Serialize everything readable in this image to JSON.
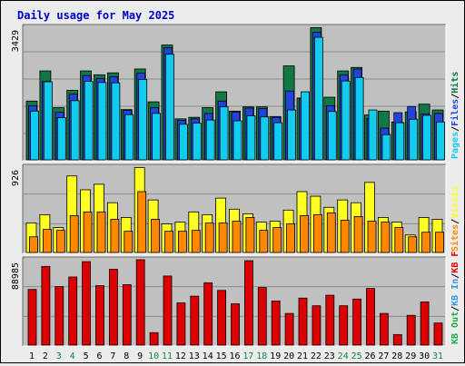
{
  "title": "Daily usage for May 2025",
  "colors": {
    "title": "#0000cc",
    "panel_bg": "#c0c0c0",
    "grid": "#8c8c8c",
    "hits": "#117744",
    "files": "#2244dd",
    "pages": "#11ccee",
    "visits": "#ffff22",
    "sites": "#ff8800",
    "kbf": "#dd0000",
    "kbin": "#3399dd",
    "kbout": "#22aa44",
    "day_weekday": "#000000",
    "day_weekend": "#118844"
  },
  "chart_data": [
    {
      "type": "bar",
      "panel": "hits-files-pages",
      "categories": [
        "1",
        "2",
        "3",
        "4",
        "5",
        "6",
        "7",
        "8",
        "9",
        "10",
        "11",
        "12",
        "13",
        "14",
        "15",
        "16",
        "17",
        "18",
        "19",
        "20",
        "21",
        "22",
        "23",
        "24",
        "25",
        "26",
        "27",
        "28",
        "29",
        "30",
        "31"
      ],
      "weekend_days": [
        "3",
        "4",
        "10",
        "11",
        "17",
        "18",
        "24",
        "25",
        "31"
      ],
      "max_label": "3429",
      "ylim": [
        0,
        3429
      ],
      "legend": [
        {
          "label": "Hits",
          "color_key": "hits"
        },
        {
          "label": "Files",
          "color_key": "files"
        },
        {
          "label": "Pages",
          "color_key": "pages"
        }
      ],
      "separator": "/",
      "series": [
        {
          "name": "Hits",
          "color_key": "hits",
          "values": [
            1520,
            2300,
            1350,
            1800,
            2300,
            2200,
            2250,
            1300,
            2350,
            1500,
            2970,
            1060,
            1100,
            1350,
            1760,
            1260,
            1370,
            1370,
            1120,
            2430,
            1600,
            3420,
            1620,
            2300,
            2390,
            1160,
            1260,
            980,
            1240,
            1440,
            1290
          ]
        },
        {
          "name": "Files",
          "color_key": "files",
          "values": [
            1400,
            2030,
            1230,
            1700,
            2180,
            2100,
            2150,
            1280,
            2240,
            1350,
            2900,
            1020,
            1060,
            1200,
            1520,
            1230,
            1340,
            1330,
            1100,
            1780,
            1580,
            3300,
            1400,
            2200,
            2350,
            1070,
            820,
            1220,
            1380,
            1190,
            1200
          ]
        },
        {
          "name": "Pages",
          "color_key": "pages",
          "values": [
            1260,
            2020,
            1090,
            1530,
            2030,
            2000,
            1990,
            1170,
            2080,
            1200,
            2730,
            920,
            950,
            1030,
            1370,
            1010,
            1140,
            1110,
            960,
            1290,
            1760,
            3170,
            1250,
            2040,
            2130,
            1290,
            650,
            960,
            1050,
            1150,
            980
          ]
        }
      ]
    },
    {
      "type": "bar",
      "panel": "visits-sites",
      "categories": [
        "1",
        "2",
        "3",
        "4",
        "5",
        "6",
        "7",
        "8",
        "9",
        "10",
        "11",
        "12",
        "13",
        "14",
        "15",
        "16",
        "17",
        "18",
        "19",
        "20",
        "21",
        "22",
        "23",
        "24",
        "25",
        "26",
        "27",
        "28",
        "29",
        "30",
        "31"
      ],
      "max_label": "926",
      "ylim": [
        0,
        926
      ],
      "legend": [
        {
          "label": "Visits",
          "color_key": "visits"
        },
        {
          "label": "Sites",
          "color_key": "sites"
        }
      ],
      "separator": "/",
      "series": [
        {
          "name": "Visits",
          "color_key": "visits",
          "values": [
            320,
            410,
            270,
            830,
            680,
            740,
            540,
            380,
            920,
            570,
            310,
            330,
            440,
            410,
            590,
            470,
            420,
            330,
            340,
            460,
            660,
            610,
            490,
            570,
            540,
            760,
            380,
            330,
            190,
            380,
            360
          ]
        },
        {
          "name": "Sites",
          "color_key": "sites",
          "values": [
            170,
            250,
            240,
            400,
            440,
            440,
            360,
            230,
            660,
            360,
            230,
            230,
            240,
            320,
            320,
            340,
            380,
            240,
            270,
            310,
            400,
            410,
            430,
            350,
            390,
            340,
            330,
            270,
            170,
            220,
            220
          ]
        }
      ]
    },
    {
      "type": "bar",
      "panel": "kbytes",
      "categories": [
        "1",
        "2",
        "3",
        "4",
        "5",
        "6",
        "7",
        "8",
        "9",
        "10",
        "11",
        "12",
        "13",
        "14",
        "15",
        "16",
        "17",
        "18",
        "19",
        "20",
        "21",
        "22",
        "23",
        "24",
        "25",
        "26",
        "27",
        "28",
        "29",
        "30",
        "31"
      ],
      "max_label": "88985",
      "ylim": [
        0,
        88985
      ],
      "legend": [
        {
          "label": "KB F",
          "color_key": "kbf"
        },
        {
          "label": "KB In",
          "color_key": "kbin"
        },
        {
          "label": "KB Out",
          "color_key": "kbout"
        }
      ],
      "separator": "/",
      "series": [
        {
          "name": "KB F",
          "color_key": "kbf",
          "values": [
            58000,
            82000,
            61000,
            71000,
            87000,
            62000,
            79000,
            63000,
            89000,
            13000,
            72000,
            44000,
            51000,
            65000,
            57000,
            43000,
            88000,
            60000,
            46000,
            33000,
            49000,
            41000,
            52000,
            41000,
            48000,
            59000,
            33000,
            11000,
            31000,
            45000,
            23000
          ]
        }
      ]
    }
  ]
}
